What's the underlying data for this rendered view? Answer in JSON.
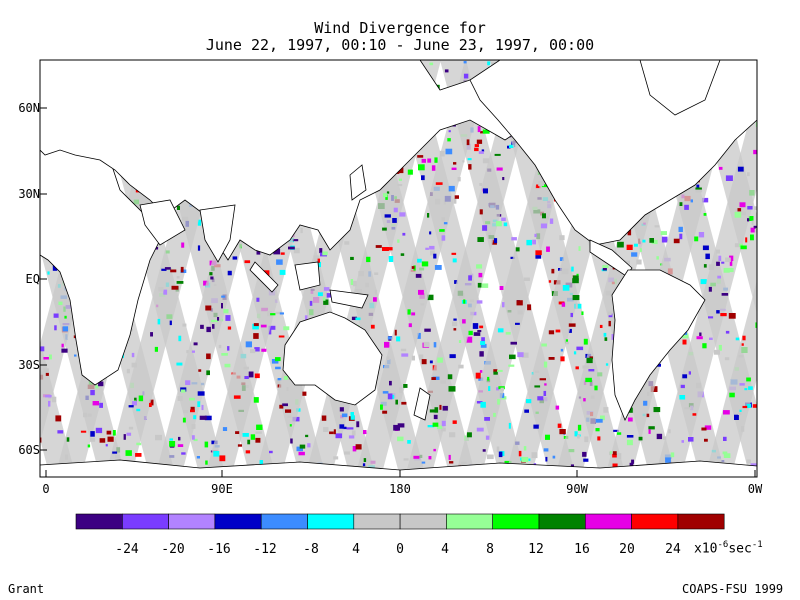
{
  "title_line1": "Wind Divergence for",
  "title_line2": "June 22, 1997, 00:10 - June 23, 1997, 00:00",
  "lat_labels": [
    "60N",
    "30N",
    "EQ",
    "30S",
    "60S"
  ],
  "lon_labels": [
    "0",
    "90E",
    "180",
    "90W",
    "0W"
  ],
  "legend": {
    "colors": [
      "#3c0082",
      "#7a3cff",
      "#b283ff",
      "#0000c8",
      "#3c8cff",
      "#00ffff",
      "#c8c8c8",
      "#c8c8c8",
      "#96ff96",
      "#00ff00",
      "#008200",
      "#e600e6",
      "#ff0000",
      "#a00000"
    ],
    "labels": [
      "-24",
      "-20",
      "-16",
      "-12",
      "-8",
      "4",
      "0",
      "4",
      "8",
      "12",
      "16",
      "20",
      "24"
    ],
    "unit_prefix": "x10",
    "unit_exp1": "-6",
    "unit_mid": "sec",
    "unit_exp2": "-1"
  },
  "footer_left": "Grant",
  "footer_right": "COAPS-FSU 1999",
  "colors": {
    "ocean_swath_gray": "#c8c8c8",
    "land": "#ffffff",
    "coast": "#000000"
  }
}
